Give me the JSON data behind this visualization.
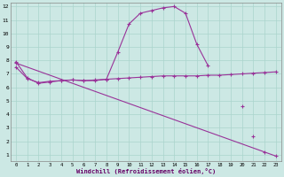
{
  "xlabel": "Windchill (Refroidissement éolien,°C)",
  "background_color": "#cce8e4",
  "grid_color": "#aad4cc",
  "line_color": "#993399",
  "x": [
    0,
    1,
    2,
    3,
    4,
    5,
    6,
    7,
    8,
    9,
    10,
    11,
    12,
    13,
    14,
    15,
    16,
    17,
    18,
    19,
    20,
    21,
    22,
    23
  ],
  "line1": [
    7.9,
    6.7,
    6.3,
    6.4,
    6.5,
    6.55,
    6.5,
    6.5,
    6.6,
    8.6,
    10.7,
    11.5,
    11.7,
    11.9,
    12.0,
    11.5,
    9.2,
    7.6,
    null,
    null,
    null,
    null,
    null,
    null
  ],
  "line2": [
    7.5,
    6.65,
    6.35,
    6.45,
    6.5,
    6.55,
    6.5,
    6.55,
    6.6,
    6.65,
    6.7,
    6.75,
    6.8,
    6.85,
    6.85,
    6.85,
    6.85,
    6.9,
    6.9,
    6.95,
    7.0,
    7.05,
    7.1,
    7.15
  ],
  "line3_x": [
    0,
    23
  ],
  "line3_y": [
    7.8,
    0.9
  ],
  "line3_markers_x": [
    0,
    20,
    21,
    22,
    23
  ],
  "line3_markers_y": [
    7.8,
    4.6,
    2.4,
    1.2,
    0.9
  ],
  "ylim": [
    0.5,
    12.3
  ],
  "xlim": [
    -0.5,
    23.5
  ],
  "yticks": [
    1,
    2,
    3,
    4,
    5,
    6,
    7,
    8,
    9,
    10,
    11,
    12
  ],
  "xticks": [
    0,
    1,
    2,
    3,
    4,
    5,
    6,
    7,
    8,
    9,
    10,
    11,
    12,
    13,
    14,
    15,
    16,
    17,
    18,
    19,
    20,
    21,
    22,
    23
  ]
}
